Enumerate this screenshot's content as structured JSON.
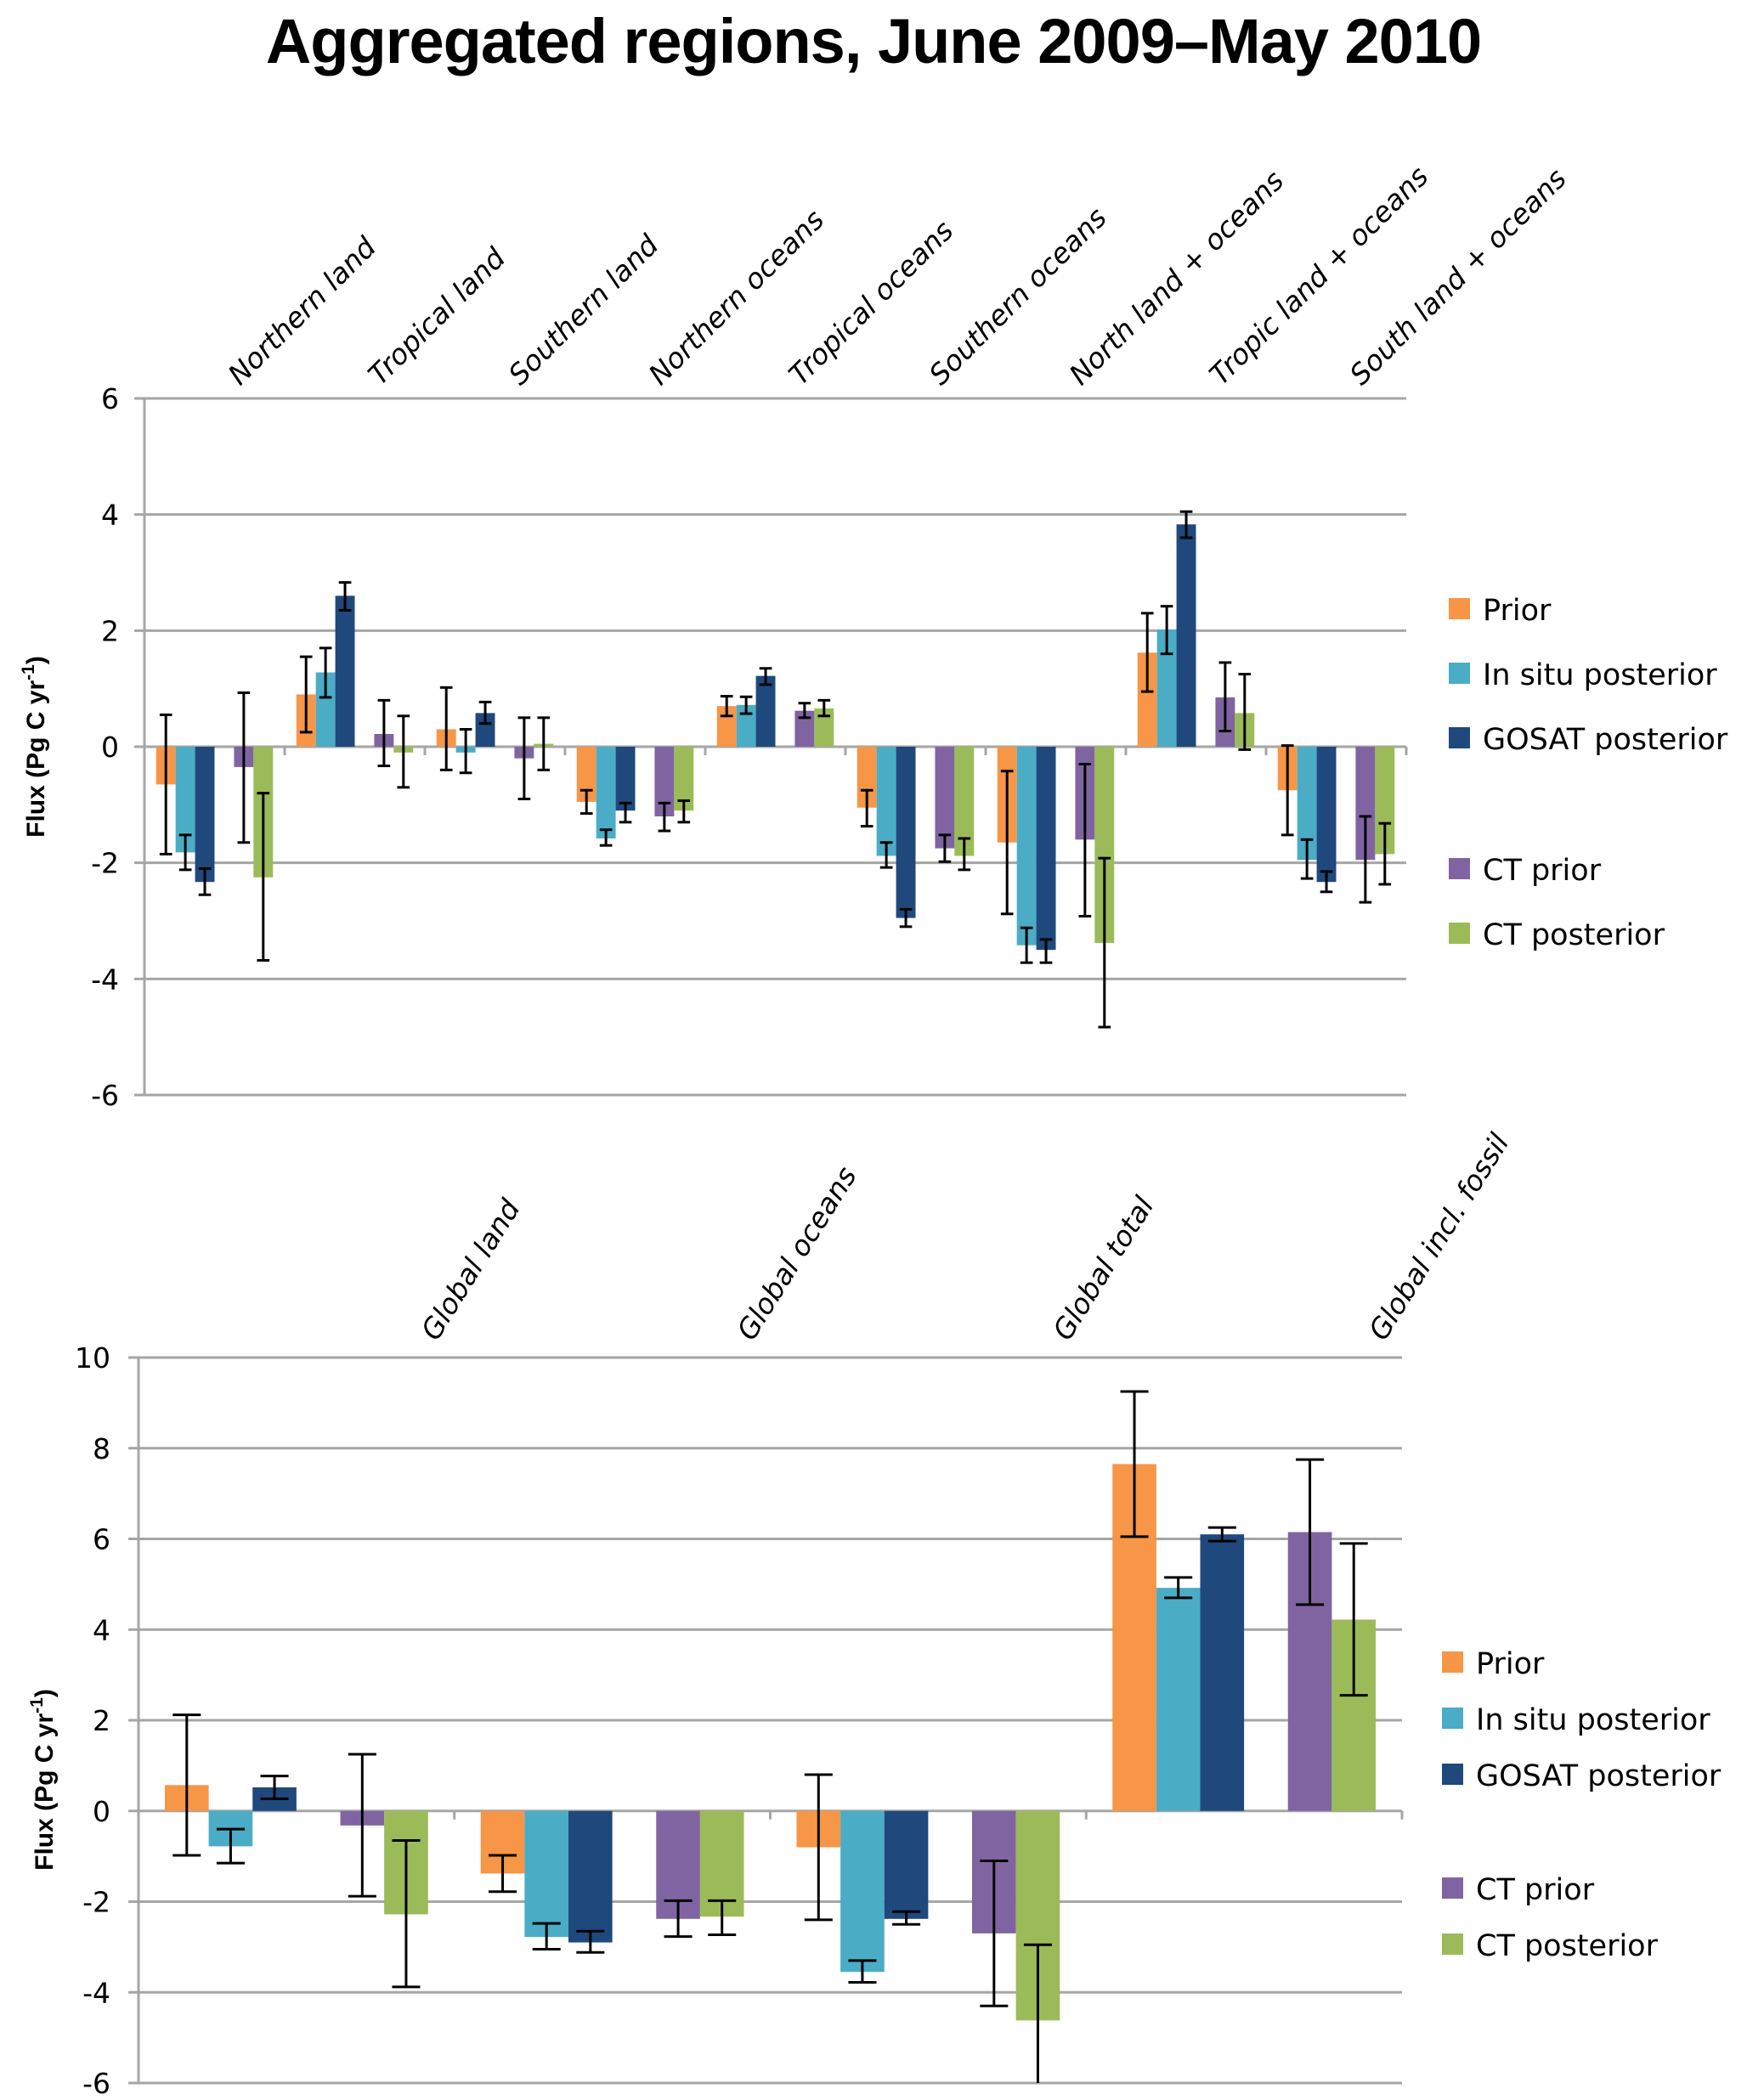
{
  "title": "Aggregated regions, June 2009–May 2010",
  "series_colors": {
    "Prior": "#F79646",
    "In situ posterior": "#4BACC6",
    "GOSAT posterior": "#1F497D",
    "CT prior": "#8064A2",
    "CT posterior": "#9BBB59"
  },
  "chart_data": [
    {
      "type": "bar",
      "title": "Aggregated regions, June 2009–May 2010",
      "xlabel": "",
      "ylabel": "Flux (Pg C yr-1)",
      "ylabel_main": "Flux (Pg C yr",
      "ylabel_sup": "-1",
      "ylabel_close": ")",
      "ylim": [
        -6,
        6
      ],
      "yticks": [
        -6,
        -4,
        -2,
        0,
        2,
        4,
        6
      ],
      "grid": true,
      "legend": "right",
      "legend_entries": [
        "Prior",
        "In situ posterior",
        "GOSAT posterior",
        "CT prior",
        "CT posterior"
      ],
      "categories": [
        "Northern  land",
        "Tropical  land",
        "Southern  land",
        "Northern  oceans",
        "Tropical oceans",
        "Southern  oceans",
        "North  land +  oceans",
        "Tropic  land +  oceans",
        "South  land +  oceans"
      ],
      "series": [
        {
          "name": "Prior",
          "values": [
            -0.65,
            0.9,
            0.3,
            -0.95,
            0.7,
            -1.05,
            -1.65,
            1.62,
            -0.75
          ],
          "err_low": [
            -1.85,
            0.25,
            -0.4,
            -1.15,
            0.53,
            -1.37,
            -2.88,
            0.95,
            -1.52
          ],
          "err_high": [
            0.55,
            1.55,
            1.02,
            -0.75,
            0.87,
            -0.75,
            -0.42,
            2.3,
            0.02
          ]
        },
        {
          "name": "In situ posterior",
          "values": [
            -1.82,
            1.28,
            -0.1,
            -1.58,
            0.72,
            -1.88,
            -3.42,
            2.02,
            -1.95
          ],
          "err_low": [
            -2.12,
            0.85,
            -0.45,
            -1.7,
            0.57,
            -2.08,
            -3.72,
            1.6,
            -2.27
          ],
          "err_high": [
            -1.52,
            1.7,
            0.3,
            -1.43,
            0.86,
            -1.65,
            -3.12,
            2.42,
            -1.6
          ]
        },
        {
          "name": "GOSAT posterior",
          "values": [
            -2.33,
            2.6,
            0.58,
            -1.1,
            1.22,
            -2.95,
            -3.5,
            3.83,
            -2.33
          ],
          "err_low": [
            -2.55,
            2.35,
            0.4,
            -1.3,
            1.07,
            -3.1,
            -3.72,
            3.6,
            -2.5
          ],
          "err_high": [
            -2.1,
            2.83,
            0.77,
            -0.97,
            1.35,
            -2.8,
            -3.32,
            4.05,
            -2.15
          ]
        },
        {
          "name": "CT prior",
          "values": [
            -0.35,
            0.22,
            -0.2,
            -1.2,
            0.62,
            -1.75,
            -1.6,
            0.85,
            -1.95
          ],
          "err_low": [
            -1.65,
            -0.33,
            -0.9,
            -1.45,
            0.5,
            -1.98,
            -2.92,
            0.27,
            -2.68
          ],
          "err_high": [
            0.93,
            0.8,
            0.5,
            -0.97,
            0.75,
            -1.52,
            -0.3,
            1.45,
            -1.2
          ]
        },
        {
          "name": "CT posterior",
          "values": [
            -2.25,
            -0.1,
            0.05,
            -1.1,
            0.66,
            -1.88,
            -3.38,
            0.58,
            -1.85
          ],
          "err_low": [
            -3.68,
            -0.7,
            -0.4,
            -1.3,
            0.53,
            -2.12,
            -4.83,
            -0.05,
            -2.37
          ],
          "err_high": [
            -0.8,
            0.53,
            0.5,
            -0.93,
            0.8,
            -1.58,
            -1.92,
            1.25,
            -1.32
          ]
        }
      ]
    },
    {
      "type": "bar",
      "title": "",
      "xlabel": "",
      "ylabel": "Flux (Pg C yr-1)",
      "ylabel_main": "Flux (Pg C yr",
      "ylabel_sup": "-1",
      "ylabel_close": ")",
      "ylim": [
        -6,
        10
      ],
      "yticks": [
        -6,
        -4,
        -2,
        0,
        2,
        4,
        6,
        8,
        10
      ],
      "grid": true,
      "legend": "right",
      "legend_entries": [
        "Prior",
        "In situ posterior",
        "GOSAT posterior",
        "CT prior",
        "CT posterior"
      ],
      "categories": [
        "Global  land",
        "Global  oceans",
        "Global  total",
        "Global incl.  fossil"
      ],
      "series": [
        {
          "name": "Prior",
          "values": [
            0.57,
            -1.38,
            -0.8,
            7.65
          ],
          "err_low": [
            -0.98,
            -1.78,
            -2.4,
            6.05
          ],
          "err_high": [
            2.12,
            -0.98,
            0.8,
            9.25
          ]
        },
        {
          "name": "In situ posterior",
          "values": [
            -0.78,
            -2.78,
            -3.55,
            4.92
          ],
          "err_low": [
            -1.15,
            -3.05,
            -3.78,
            4.7
          ],
          "err_high": [
            -0.4,
            -2.48,
            -3.3,
            5.15
          ]
        },
        {
          "name": "GOSAT posterior",
          "values": [
            0.52,
            -2.9,
            -2.38,
            6.1
          ],
          "err_low": [
            0.27,
            -3.12,
            -2.5,
            5.95
          ],
          "err_high": [
            0.77,
            -2.65,
            -2.22,
            6.25
          ]
        },
        {
          "name": "CT prior",
          "values": [
            -0.32,
            -2.38,
            -2.7,
            6.15
          ],
          "err_low": [
            -1.88,
            -2.77,
            -4.3,
            4.55
          ],
          "err_high": [
            1.25,
            -1.98,
            -1.1,
            7.75
          ]
        },
        {
          "name": "CT posterior",
          "values": [
            -2.28,
            -2.33,
            -4.62,
            4.22
          ],
          "err_low": [
            -3.88,
            -2.73,
            -6.0,
            2.55
          ],
          "err_high": [
            -0.65,
            -1.98,
            -2.95,
            5.9
          ]
        }
      ]
    }
  ]
}
